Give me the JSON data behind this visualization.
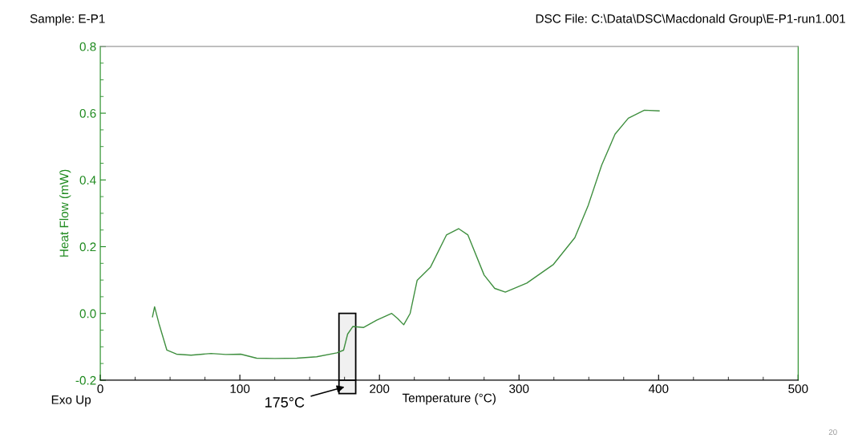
{
  "chart_data": {
    "type": "line",
    "xlabel": "Temperature (°C)",
    "ylabel": "Heat Flow (mW)",
    "xlim": [
      0,
      500
    ],
    "xticks": [
      0,
      100,
      200,
      300,
      400,
      500
    ],
    "ylim": [
      -0.2,
      0.8
    ],
    "yticks": [
      {
        "value": -0.2,
        "label": "-0.2"
      },
      {
        "value": 0.0,
        "label": "0.0"
      },
      {
        "value": 0.2,
        "label": "0.2"
      },
      {
        "value": 0.4,
        "label": "0.4"
      },
      {
        "value": 0.6,
        "label": "0.6"
      },
      {
        "value": 0.8,
        "label": "0.8"
      }
    ],
    "grid": false,
    "legend": false,
    "marker": "none",
    "line_style": "solid",
    "series": [
      {
        "color": "#3f8f3f",
        "x": [
          37.4,
          38.9,
          42,
          47.7,
          54.6,
          65,
          79.3,
          90,
          100.6,
          112,
          125,
          140.8,
          155,
          169.5,
          174.3,
          177.2,
          181,
          188.7,
          198,
          208.8,
          213,
          217.4,
          222,
          227,
          236.6,
          248,
          256.7,
          263.4,
          275,
          282.6,
          290.2,
          305.6,
          324.7,
          340,
          349.6,
          359.2,
          368.8,
          378.3,
          389.8,
          400.4
        ],
        "values": [
          -0.01,
          0.02,
          -0.03,
          -0.11,
          -0.122,
          -0.125,
          -0.12,
          -0.123,
          -0.122,
          -0.134,
          -0.135,
          -0.134,
          -0.13,
          -0.118,
          -0.11,
          -0.062,
          -0.039,
          -0.042,
          -0.02,
          0.0,
          -0.015,
          -0.034,
          0.0,
          0.099,
          0.139,
          0.235,
          0.254,
          0.235,
          0.115,
          0.075,
          0.064,
          0.091,
          0.147,
          0.227,
          0.324,
          0.444,
          0.537,
          0.585,
          0.609,
          0.607
        ]
      }
    ],
    "bands": [
      {
        "axis": "x",
        "from": 171,
        "to": 183,
        "label": "175°C",
        "color": "#f0f0f0"
      }
    ],
    "annotations": [
      "Sample: E-P1",
      "DSC File: C:\\Data\\DSC\\Macdonald Group\\E-P1-run1.001",
      "Exo Up",
      "20"
    ]
  }
}
